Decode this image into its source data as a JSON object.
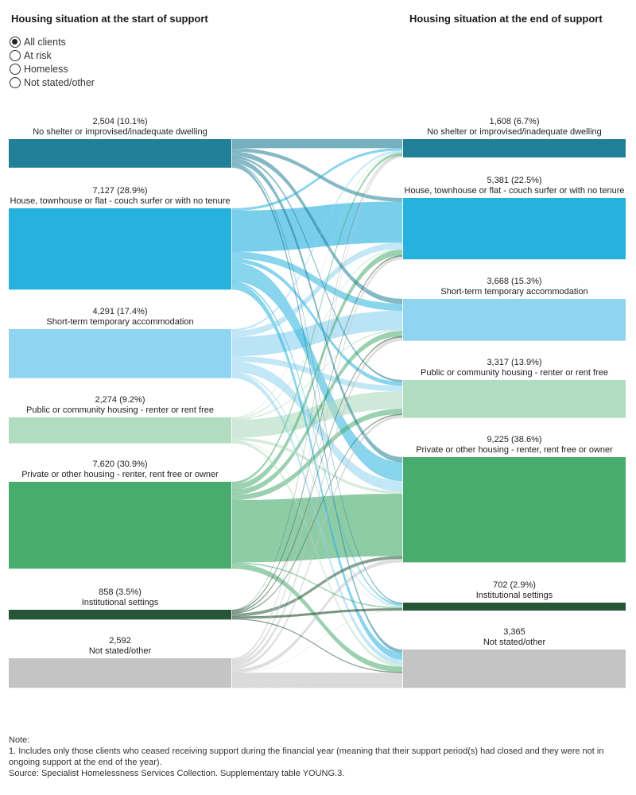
{
  "headings": {
    "start": "Housing situation at the start of support",
    "end": "Housing situation at the end of support"
  },
  "filter": {
    "options": [
      "All clients",
      "At risk",
      "Homeless",
      "Not stated/other"
    ],
    "selected": 0
  },
  "chart_data": {
    "type": "sankey",
    "start_nodes": [
      {
        "label": "No shelter or improvised/inadequate dwelling",
        "count": "2,504",
        "pct": "(10.1%)",
        "value": 2504,
        "color": "#227f98"
      },
      {
        "label": "House, townhouse or flat - couch surfer or with no tenure",
        "count": "7,127",
        "pct": "(28.9%)",
        "value": 7127,
        "color": "#27b2de"
      },
      {
        "label": "Short-term temporary accommodation",
        "count": "4,291",
        "pct": "(17.4%)",
        "value": 4291,
        "color": "#8fd4f0"
      },
      {
        "label": "Public or community housing - renter or rent free",
        "count": "2,274",
        "pct": "(9.2%)",
        "value": 2274,
        "color": "#b2dcc0"
      },
      {
        "label": "Private or other housing - renter, rent free or owner",
        "count": "7,620",
        "pct": "(30.9%)",
        "value": 7620,
        "color": "#49ac6f"
      },
      {
        "label": "Institutional settings",
        "count": "858",
        "pct": "(3.5%)",
        "value": 858,
        "color": "#265537"
      },
      {
        "label": "Not stated/other",
        "count": "2,592",
        "pct": "",
        "value": 2592,
        "color": "#c4c4c4"
      }
    ],
    "end_nodes": [
      {
        "label": "No shelter or improvised/inadequate dwelling",
        "count": "1,608",
        "pct": "(6.7%)",
        "value": 1608,
        "color": "#227f98"
      },
      {
        "label": "House, townhouse or flat - couch surfer or with no tenure",
        "count": "5,381",
        "pct": "(22.5%)",
        "value": 5381,
        "color": "#27b2de"
      },
      {
        "label": "Short-term temporary accommodation",
        "count": "3,668",
        "pct": "(15.3%)",
        "value": 3668,
        "color": "#8fd4f0"
      },
      {
        "label": "Public or community housing - renter or rent free",
        "count": "3,317",
        "pct": "(13.9%)",
        "value": 3317,
        "color": "#b2dcc0"
      },
      {
        "label": "Private or other housing - renter, rent free or owner",
        "count": "9,225",
        "pct": "(38.6%)",
        "value": 9225,
        "color": "#49ac6f"
      },
      {
        "label": "Institutional settings",
        "count": "702",
        "pct": "(2.9%)",
        "value": 702,
        "color": "#265537"
      },
      {
        "label": "Not stated/other",
        "count": "3,365",
        "pct": "",
        "value": 3365,
        "color": "#c4c4c4"
      }
    ],
    "flows": [
      [
        780,
        310,
        420,
        160,
        440,
        110,
        284
      ],
      [
        210,
        3600,
        610,
        340,
        1640,
        140,
        587
      ],
      [
        150,
        530,
        1700,
        480,
        900,
        120,
        411
      ],
      [
        50,
        90,
        90,
        1550,
        230,
        40,
        224
      ],
      [
        210,
        500,
        450,
        450,
        5460,
        90,
        460
      ],
      [
        28,
        110,
        110,
        90,
        250,
        190,
        80
      ],
      [
        180,
        241,
        288,
        247,
        305,
        12,
        1319
      ]
    ]
  },
  "note": {
    "title": "Note:",
    "line1": "1.  Includes only those clients who ceased receiving support during the financial year (meaning that their support period(s) had closed and they were not in ongoing support at the end of the year).",
    "source": "Source: Specialist Homelessness Services Collection. Supplementary table YOUNG.3."
  }
}
